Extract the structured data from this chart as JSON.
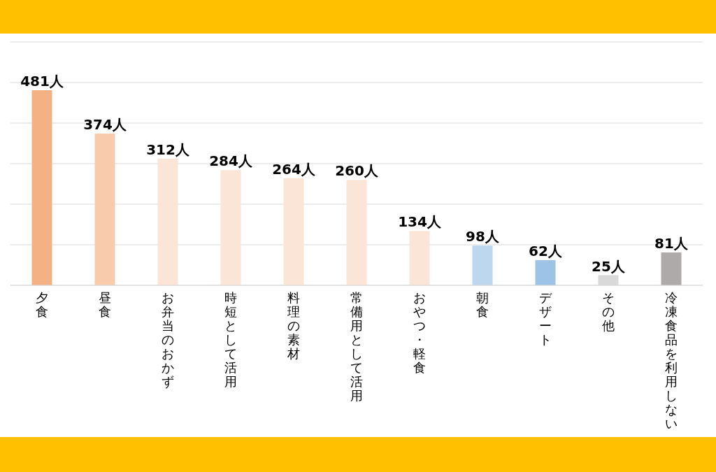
{
  "chart_data": {
    "type": "bar",
    "categories": [
      "夕食",
      "昼食",
      "お弁当のおかず",
      "時短として活用",
      "料理の素材",
      "常備用として活用",
      "おやつ・軽食",
      "朝食",
      "デザート",
      "その他",
      "冷凍食品を利用しない"
    ],
    "values": [
      481,
      374,
      312,
      284,
      264,
      260,
      134,
      98,
      62,
      25,
      81
    ],
    "value_labels": [
      "481人",
      "374人",
      "312人",
      "284人",
      "264人",
      "260人",
      "134人",
      "98人",
      "62人",
      "25人",
      "81人"
    ],
    "colors": [
      "#f4b183",
      "#f8cbad",
      "#fbe5d6",
      "#fbe5d6",
      "#fbe5d6",
      "#fbe5d6",
      "#fbe5d6",
      "#bdd7ee",
      "#9dc3e6",
      "#d9d9d9",
      "#aeaaaa"
    ],
    "ylim": [
      0,
      600
    ],
    "yticks": [
      {
        "value": 0,
        "label": null
      },
      {
        "value": 100,
        "label": null
      },
      {
        "value": 200,
        "label": null
      },
      {
        "value": 300,
        "label": null
      },
      {
        "value": 400,
        "label": null
      },
      {
        "value": 500,
        "label": null
      },
      {
        "value": 600,
        "label": null
      }
    ],
    "grid": "y",
    "tick_labels": "x"
  }
}
